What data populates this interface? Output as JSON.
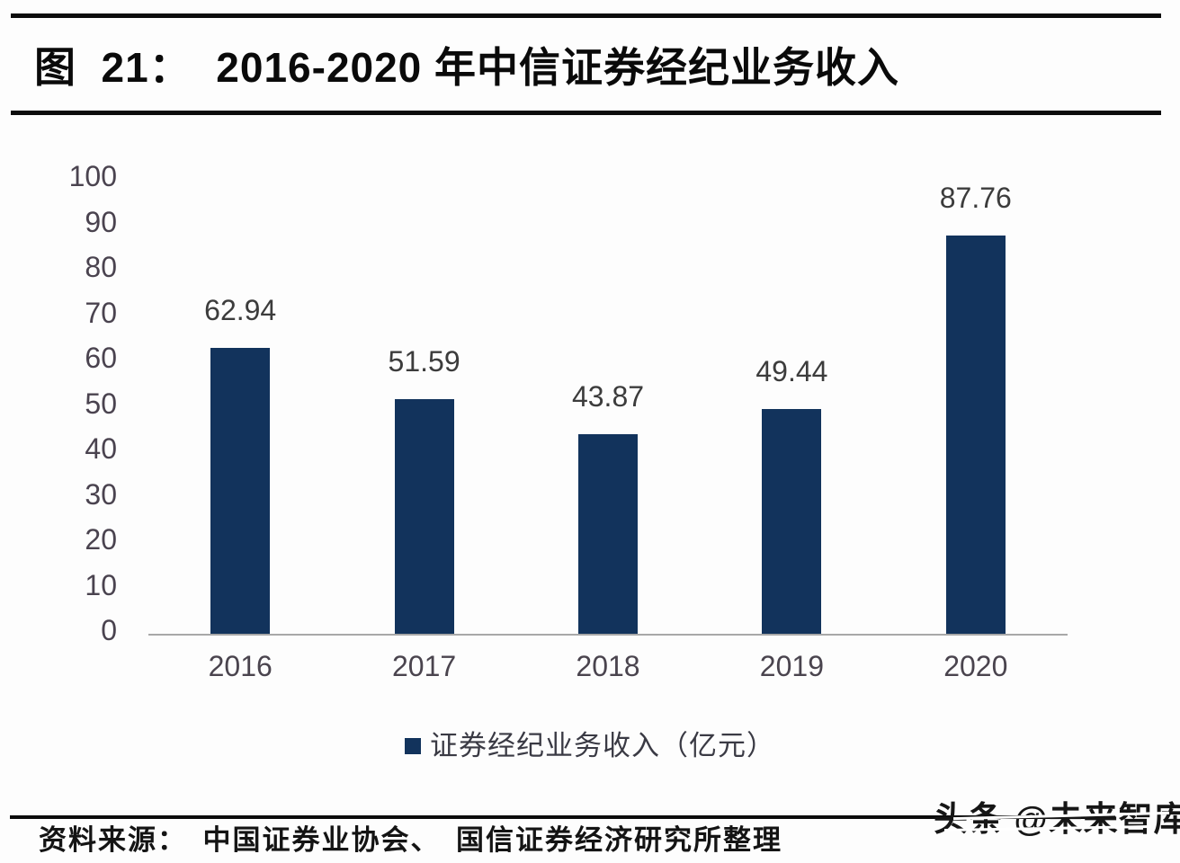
{
  "header": {
    "title": "图  21：  2016-2020 年中信证券经纪业务收入"
  },
  "chart_data": {
    "type": "bar",
    "title": "2016-2020 年中信证券经纪业务收入",
    "categories": [
      "2016",
      "2017",
      "2018",
      "2019",
      "2020"
    ],
    "values": [
      62.94,
      51.59,
      43.87,
      49.44,
      87.76
    ],
    "value_labels": [
      "62.94",
      "51.59",
      "43.87",
      "49.44",
      "87.76"
    ],
    "series_name": "证券经纪业务收入（亿元）",
    "xlabel": "",
    "ylabel": "",
    "ylim": [
      0,
      100
    ],
    "yticks": [
      0,
      10,
      20,
      30,
      40,
      50,
      60,
      70,
      80,
      90,
      100
    ],
    "grid": false,
    "legend_position": "bottom",
    "bar_color": "#12335c"
  },
  "legend": {
    "marker": "square",
    "marker_color": "#12335c",
    "label": "证券经纪业务收入（亿元）"
  },
  "footer": {
    "source": "资料来源：　中国证券业协会、　国信证券经济研究所整理"
  },
  "watermark": {
    "text": "头条 @未来智库"
  },
  "colors": {
    "bar": "#12335c",
    "axis_tick_text": "#4a434f",
    "value_label_text": "#3c3c3c",
    "baseline": "#a8a8a8",
    "divider_rule": "#0c0c0c",
    "title_text": "#0a0a0a",
    "background": "#fdfdfd"
  }
}
